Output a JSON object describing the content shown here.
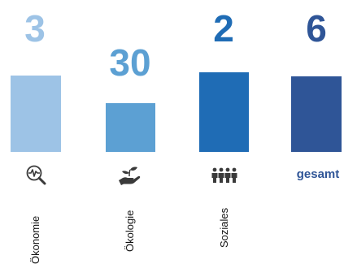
{
  "chart_data": {
    "type": "bar",
    "categories": [
      "Ökonomie",
      "Ökologie",
      "Soziales",
      "gesamt"
    ],
    "values": [
      3,
      30,
      2,
      6
    ],
    "colors": [
      "#9dc3e6",
      "#5ca0d3",
      "#1f6cb5",
      "#2f5597"
    ],
    "icons": [
      "magnifier-pulse-icon",
      "hand-plant-icon",
      "people-group-icon",
      ""
    ],
    "bar_fill_fraction": [
      0.75,
      0.48,
      0.78,
      0.74
    ]
  }
}
